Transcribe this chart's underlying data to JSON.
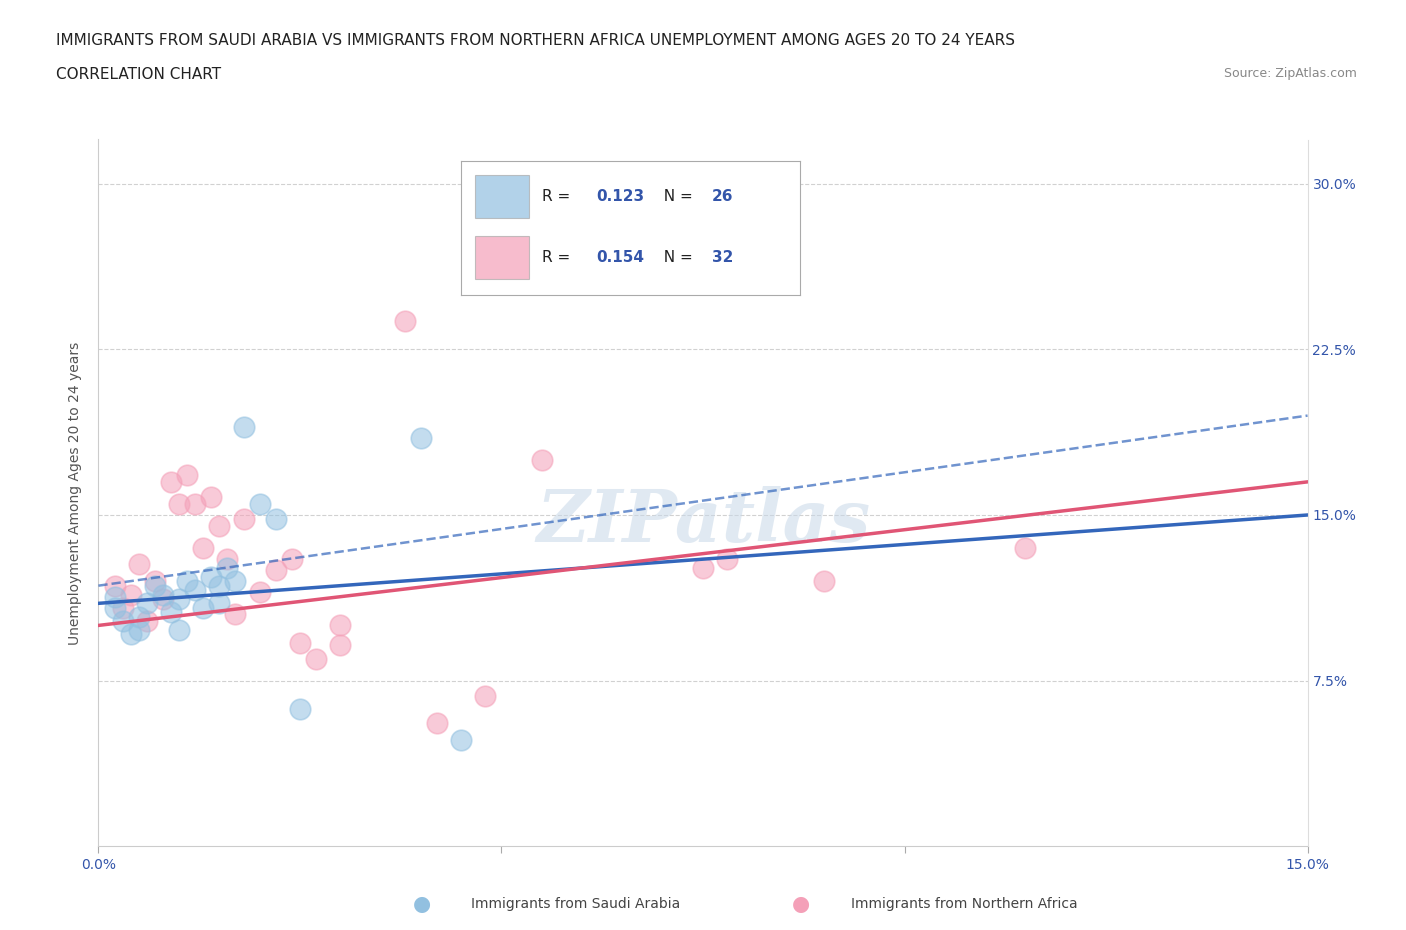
{
  "title_line1": "IMMIGRANTS FROM SAUDI ARABIA VS IMMIGRANTS FROM NORTHERN AFRICA UNEMPLOYMENT AMONG AGES 20 TO 24 YEARS",
  "title_line2": "CORRELATION CHART",
  "source": "Source: ZipAtlas.com",
  "ylabel": "Unemployment Among Ages 20 to 24 years",
  "xlim": [
    0.0,
    0.15
  ],
  "ylim": [
    0.0,
    0.32
  ],
  "ytick_positions": [
    0.075,
    0.15,
    0.225,
    0.3
  ],
  "ytick_labels": [
    "7.5%",
    "15.0%",
    "22.5%",
    "30.0%"
  ],
  "watermark": "ZIPatlas",
  "saudi_arabia_scatter": [
    [
      0.002,
      0.113
    ],
    [
      0.002,
      0.108
    ],
    [
      0.003,
      0.102
    ],
    [
      0.004,
      0.096
    ],
    [
      0.005,
      0.104
    ],
    [
      0.005,
      0.098
    ],
    [
      0.006,
      0.11
    ],
    [
      0.007,
      0.118
    ],
    [
      0.008,
      0.114
    ],
    [
      0.009,
      0.106
    ],
    [
      0.01,
      0.112
    ],
    [
      0.01,
      0.098
    ],
    [
      0.011,
      0.12
    ],
    [
      0.012,
      0.116
    ],
    [
      0.013,
      0.108
    ],
    [
      0.014,
      0.122
    ],
    [
      0.015,
      0.118
    ],
    [
      0.015,
      0.11
    ],
    [
      0.016,
      0.126
    ],
    [
      0.017,
      0.12
    ],
    [
      0.018,
      0.19
    ],
    [
      0.02,
      0.155
    ],
    [
      0.022,
      0.148
    ],
    [
      0.025,
      0.062
    ],
    [
      0.04,
      0.185
    ],
    [
      0.045,
      0.048
    ]
  ],
  "northern_africa_scatter": [
    [
      0.002,
      0.118
    ],
    [
      0.003,
      0.108
    ],
    [
      0.004,
      0.114
    ],
    [
      0.005,
      0.128
    ],
    [
      0.006,
      0.102
    ],
    [
      0.007,
      0.12
    ],
    [
      0.008,
      0.112
    ],
    [
      0.009,
      0.165
    ],
    [
      0.01,
      0.155
    ],
    [
      0.011,
      0.168
    ],
    [
      0.012,
      0.155
    ],
    [
      0.013,
      0.135
    ],
    [
      0.014,
      0.158
    ],
    [
      0.015,
      0.145
    ],
    [
      0.016,
      0.13
    ],
    [
      0.017,
      0.105
    ],
    [
      0.018,
      0.148
    ],
    [
      0.02,
      0.115
    ],
    [
      0.022,
      0.125
    ],
    [
      0.024,
      0.13
    ],
    [
      0.025,
      0.092
    ],
    [
      0.027,
      0.085
    ],
    [
      0.03,
      0.1
    ],
    [
      0.03,
      0.091
    ],
    [
      0.038,
      0.238
    ],
    [
      0.042,
      0.056
    ],
    [
      0.048,
      0.068
    ],
    [
      0.055,
      0.175
    ],
    [
      0.075,
      0.126
    ],
    [
      0.078,
      0.13
    ],
    [
      0.09,
      0.12
    ],
    [
      0.115,
      0.135
    ]
  ],
  "saudi_line_solid": [
    [
      0.0,
      0.11
    ],
    [
      0.15,
      0.15
    ]
  ],
  "saudi_line_dashed": [
    [
      0.0,
      0.118
    ],
    [
      0.15,
      0.195
    ]
  ],
  "northern_africa_line": [
    [
      0.0,
      0.1
    ],
    [
      0.15,
      0.165
    ]
  ],
  "saudi_color": "#92c0e0",
  "northern_color": "#f4a0b8",
  "saudi_line_color": "#3366bb",
  "northern_line_color": "#e05575",
  "background_color": "#ffffff",
  "grid_color": "#cccccc",
  "title_fontsize": 11,
  "axis_label_fontsize": 10,
  "tick_fontsize": 10,
  "r_color": "#3355aa",
  "n_color": "#cc2222",
  "legend_r1": "0.123",
  "legend_n1": "26",
  "legend_r2": "0.154",
  "legend_n2": "32",
  "legend_label1": "Immigrants from Saudi Arabia",
  "legend_label2": "Immigrants from Northern Africa"
}
